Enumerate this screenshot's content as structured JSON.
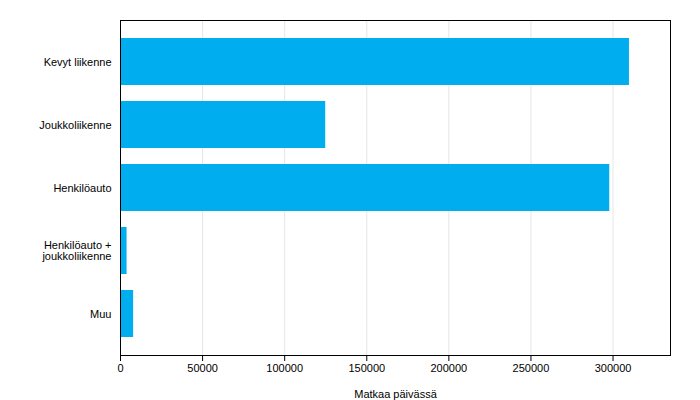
{
  "chart_data": {
    "type": "bar",
    "orientation": "horizontal",
    "categories": [
      "Kevyt liikenne",
      "Joukkoliikenne",
      "Henkilöauto",
      "Henkilöauto +\njoukkoliikenne",
      "Muu"
    ],
    "values": [
      310000,
      125000,
      298000,
      4000,
      8000
    ],
    "color": "#00AEEF",
    "xlabel": "Matkaa päivässä",
    "xlim": [
      0,
      335000
    ],
    "xticks": [
      0,
      50000,
      100000,
      150000,
      200000,
      250000,
      300000
    ],
    "grid": true
  }
}
